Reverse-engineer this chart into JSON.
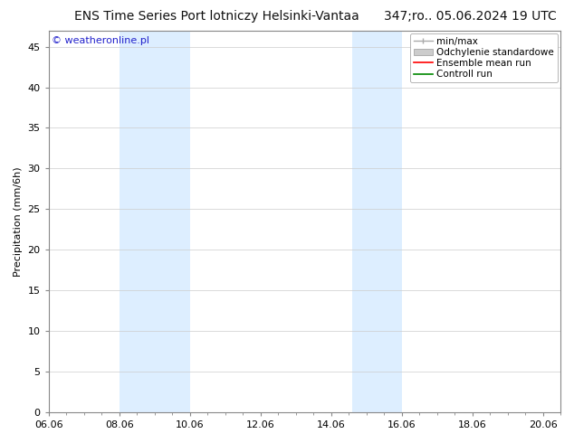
{
  "title_left": "ENS Time Series Port lotniczy Helsinki-Vantaa",
  "title_right": "347;ro.. 05.06.2024 19 UTC",
  "ylabel": "Precipitation (mm/6h)",
  "watermark": "© weatheronline.pl",
  "xticks_labels": [
    "06.06",
    "08.06",
    "10.06",
    "12.06",
    "14.06",
    "16.06",
    "18.06",
    "20.06"
  ],
  "xtick_positions": [
    0,
    2,
    4,
    6,
    8,
    10,
    12,
    14
  ],
  "xlim": [
    0,
    14
  ],
  "ylim": [
    0,
    47
  ],
  "yticks": [
    0,
    5,
    10,
    15,
    20,
    25,
    30,
    35,
    40,
    45
  ],
  "shaded_regions": [
    {
      "xstart": 2,
      "xend": 4,
      "color": "#ddeeff"
    },
    {
      "xstart": 8.6,
      "xend": 10,
      "color": "#ddeeff"
    }
  ],
  "background_color": "#ffffff",
  "plot_bg_color": "#ffffff",
  "grid_color": "#cccccc",
  "legend_entries": [
    {
      "label": "min/max",
      "type": "minmax"
    },
    {
      "label": "Odchylenie standardowe",
      "type": "std"
    },
    {
      "label": "Ensemble mean run",
      "type": "line",
      "color": "#ff0000"
    },
    {
      "label": "Controll run",
      "type": "line",
      "color": "#00aa00"
    }
  ],
  "title_fontsize": 10,
  "axis_fontsize": 8,
  "tick_fontsize": 8,
  "legend_fontsize": 7.5,
  "watermark_color": "#2222cc",
  "watermark_fontsize": 8,
  "spine_color": "#888888"
}
